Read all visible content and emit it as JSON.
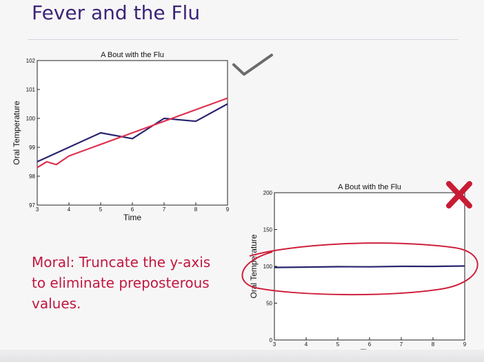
{
  "slide": {
    "title": "Fever and the Flu",
    "moral": "Moral: Truncate the y-axis to eliminate preposterous values."
  },
  "annotations": {
    "good_mark": "checkmark-icon",
    "bad_mark": "x-icon",
    "ink_check_color": "#6b6b6b",
    "ink_x_color": "#c81c36",
    "ink_circle_color": "#cf1f3a"
  },
  "chart_data": [
    {
      "type": "line",
      "title": "A Bout with the Flu",
      "xlabel": "Time",
      "ylabel": "Oral Temperature",
      "xlim": [
        3,
        9
      ],
      "ylim": [
        97,
        102
      ],
      "xticks": [
        3,
        4,
        5,
        6,
        7,
        8,
        9
      ],
      "yticks": [
        97,
        98,
        99,
        100,
        101,
        102
      ],
      "grid": false,
      "series": [
        {
          "color": "#27246e",
          "x": [
            3,
            4,
            5,
            6,
            7,
            8,
            9
          ],
          "y": [
            98.5,
            99.0,
            99.5,
            99.3,
            100.0,
            99.9,
            100.5
          ]
        },
        {
          "color": "#e0304f",
          "x": [
            3,
            3.3,
            3.6,
            4,
            5,
            6,
            7,
            8,
            9
          ],
          "y": [
            98.3,
            98.5,
            98.4,
            98.7,
            99.1,
            99.5,
            99.9,
            100.3,
            100.7
          ]
        }
      ]
    },
    {
      "type": "line",
      "title": "A Bout with the Flu",
      "xlabel": "Time",
      "ylabel": "Oral Temperature",
      "xlim": [
        3,
        9
      ],
      "ylim": [
        0,
        200
      ],
      "xticks": [
        3,
        4,
        5,
        6,
        7,
        8,
        9
      ],
      "yticks": [
        0,
        50,
        100,
        150,
        200
      ],
      "grid": false,
      "series": [
        {
          "color": "#27246e",
          "x": [
            3,
            4,
            5,
            6,
            7,
            8,
            9
          ],
          "y": [
            98.5,
            99.0,
            99.5,
            99.3,
            100.0,
            99.9,
            100.5
          ]
        }
      ]
    }
  ]
}
